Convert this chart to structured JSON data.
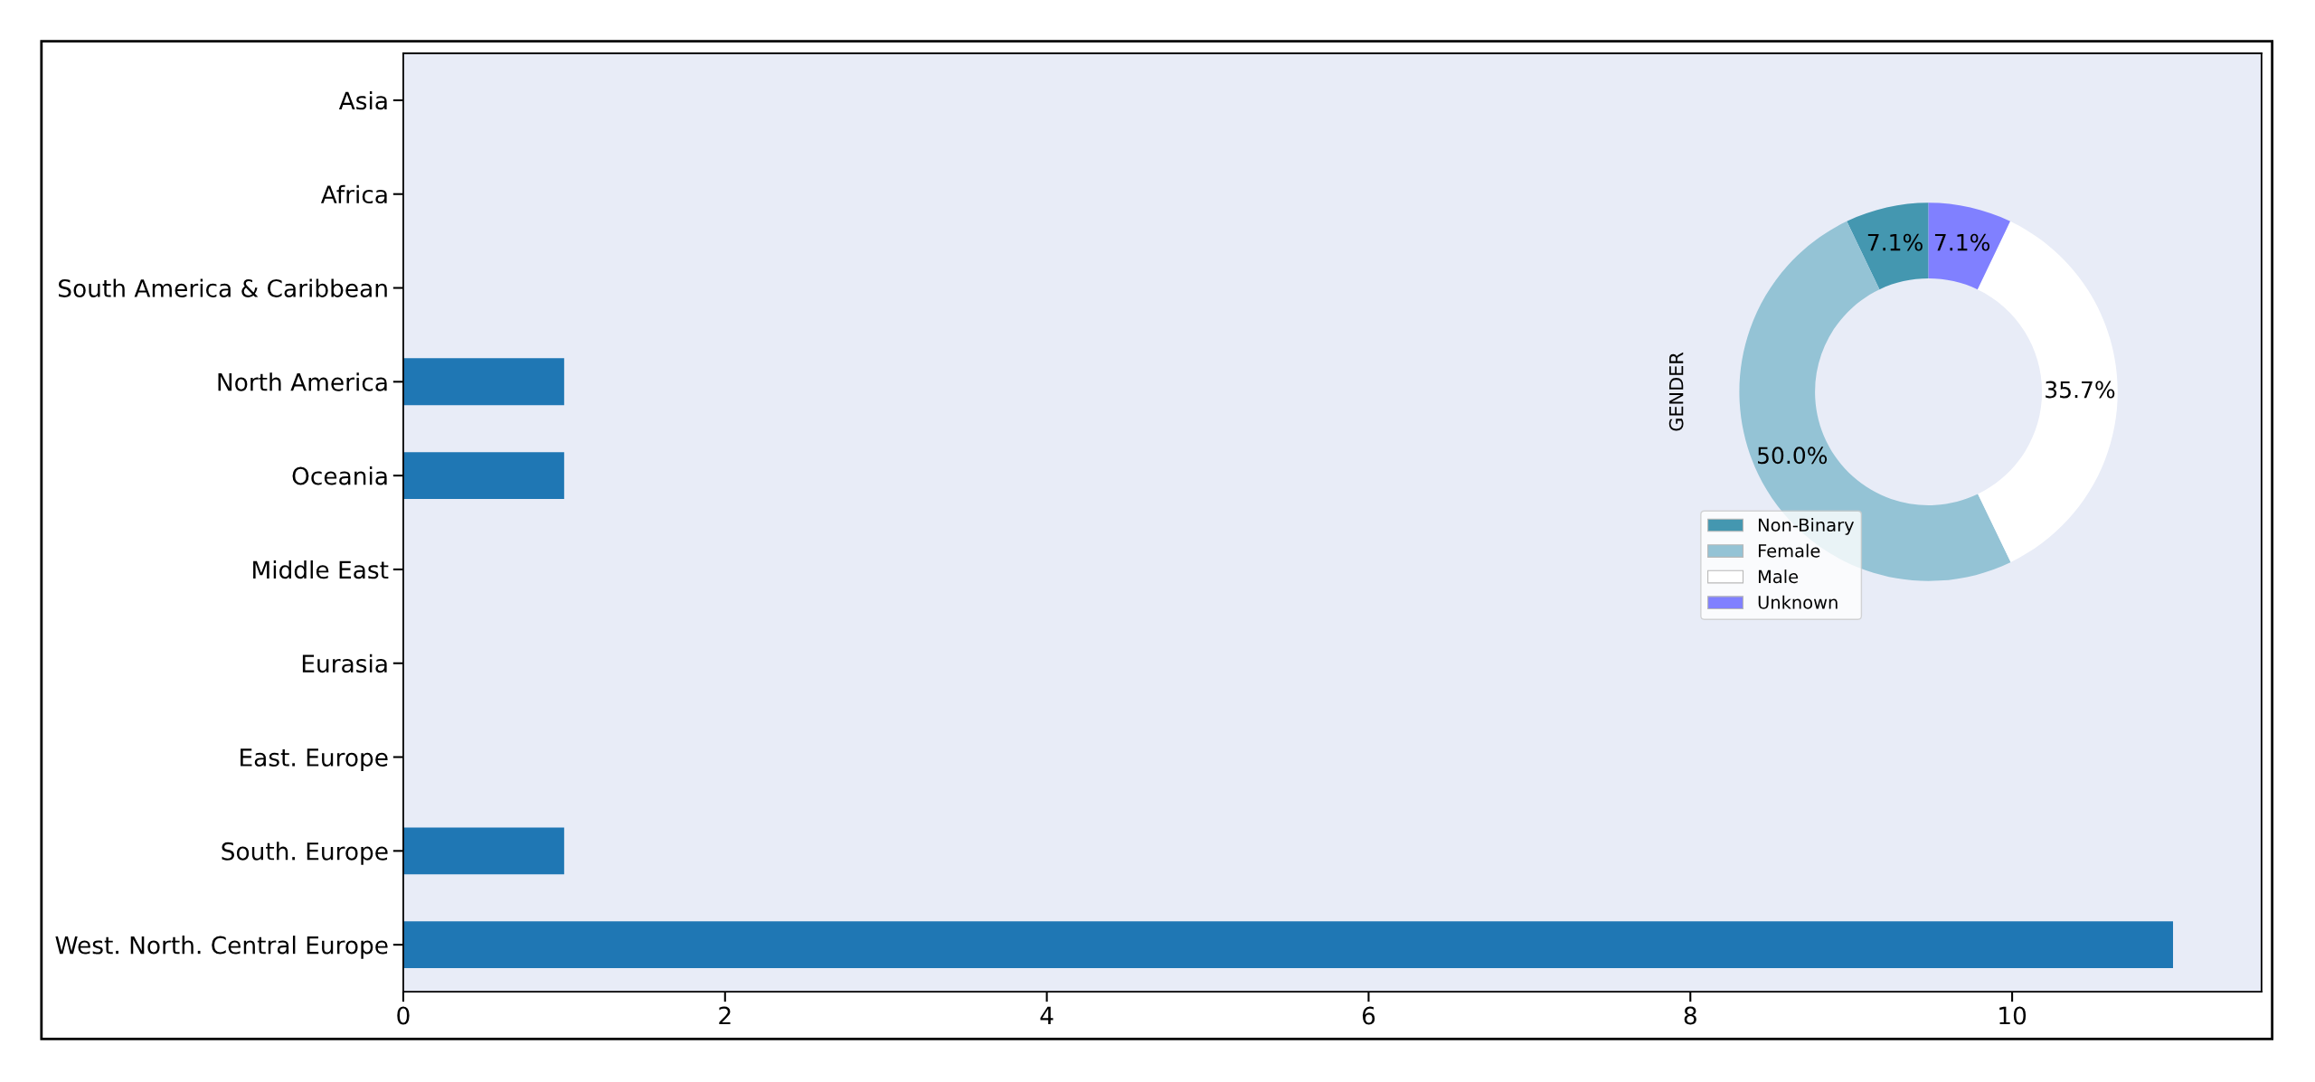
{
  "chart_data": [
    {
      "type": "bar",
      "orientation": "horizontal",
      "categories": [
        "Asia",
        "Africa",
        "South America & Caribbean",
        "North America",
        "Oceania",
        "Middle East",
        "Eurasia",
        "East. Europe",
        "South. Europe",
        "West. North. Central Europe"
      ],
      "values": [
        0,
        0,
        0,
        1,
        1,
        0,
        0,
        0,
        1,
        11
      ],
      "color": "#1f77b4",
      "xlim": [
        0,
        11.55
      ],
      "xticks": [
        0,
        2,
        4,
        6,
        8,
        10
      ],
      "grid": false
    },
    {
      "type": "donut",
      "categories": [
        "Non-Binary",
        "Female",
        "Male",
        "Unknown"
      ],
      "values": [
        7.1,
        50.0,
        35.7,
        7.1
      ],
      "colors": [
        "#4497b0",
        "#94c3d5",
        "#ffffff",
        "#8080ff"
      ],
      "value_labels": [
        "7.1%",
        "50.0%",
        "35.7%",
        "7.1%"
      ],
      "ylabel": "GENDER",
      "legend": "lower left"
    }
  ]
}
